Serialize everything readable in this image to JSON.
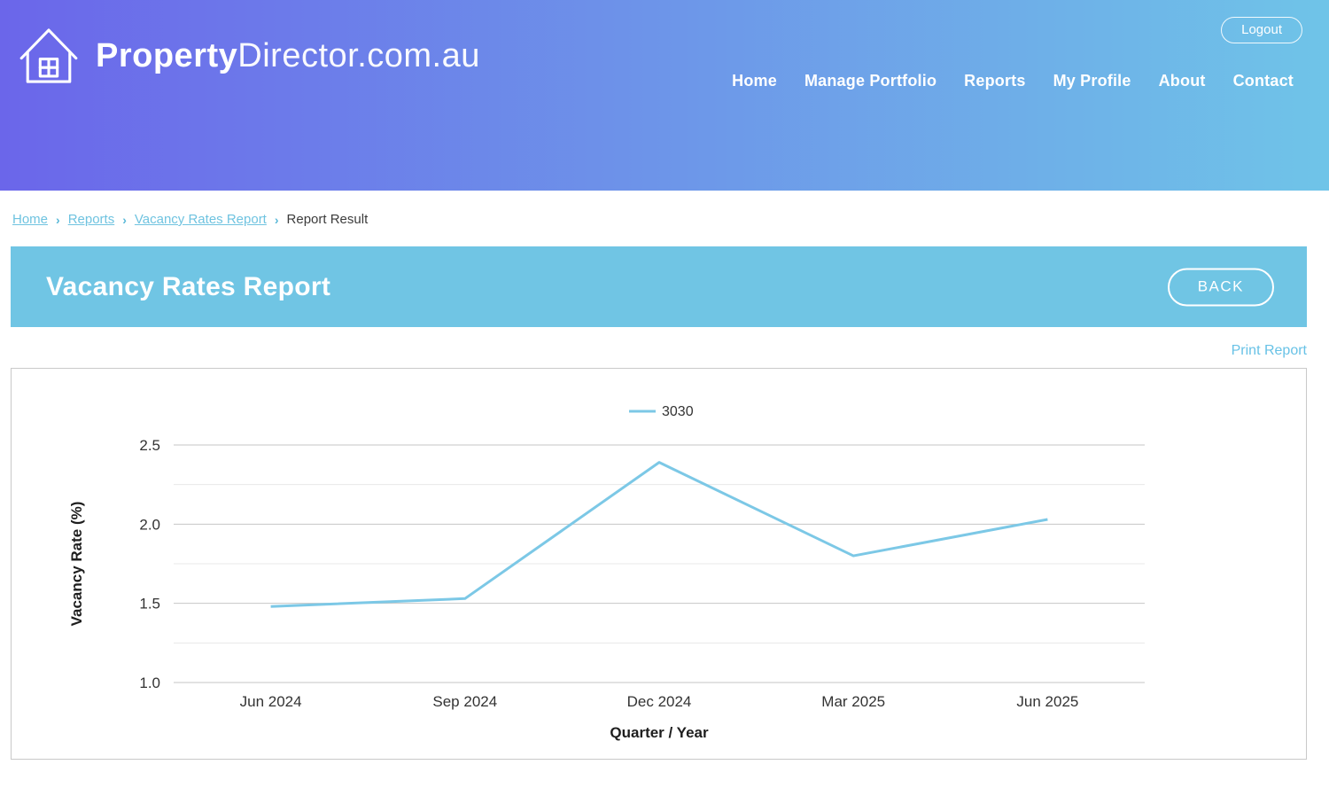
{
  "header": {
    "brand": {
      "bold": "Property",
      "light": "Director.com.au"
    },
    "nav": [
      "Home",
      "Manage Portfolio",
      "Reports",
      "My Profile",
      "About",
      "Contact"
    ],
    "logout_label": "Logout"
  },
  "breadcrumb": {
    "links": [
      "Home",
      "Reports",
      "Vacancy Rates Report"
    ],
    "current": "Report Result",
    "separator": "›"
  },
  "title_bar": {
    "title": "Vacancy Rates Report",
    "back_label": "BACK"
  },
  "actions": {
    "print_report": "Print Report"
  },
  "colors": {
    "header_gradient_start": "#6b66ea",
    "header_gradient_end": "#6fc4e8",
    "accent_bar": "#70c5e4",
    "link_blue": "#68c2e6",
    "breadcrumb_link": "#6fc3e0",
    "breadcrumb_separator": "#59b8d8",
    "text_dark": "#3c3c3c",
    "panel_border": "#c9c9c9",
    "grid_major": "#c6c6c6",
    "grid_minor": "#e8e8e8"
  },
  "chart_data": {
    "type": "line",
    "categories": [
      "Jun 2024",
      "Sep 2024",
      "Dec 2024",
      "Mar 2025",
      "Jun 2025"
    ],
    "series": [
      {
        "name": "3030",
        "values": [
          1.48,
          1.53,
          2.39,
          1.8,
          2.03
        ],
        "color": "#7cc8e6"
      }
    ],
    "xlabel": "Quarter / Year",
    "ylabel": "Vacancy Rate (%)",
    "ylim": [
      1.0,
      2.5
    ],
    "ytick_step": 0.25,
    "ytick_labeled": [
      1.0,
      1.5,
      2.0,
      2.5
    ],
    "grid": true,
    "legend_position": "top-center"
  }
}
